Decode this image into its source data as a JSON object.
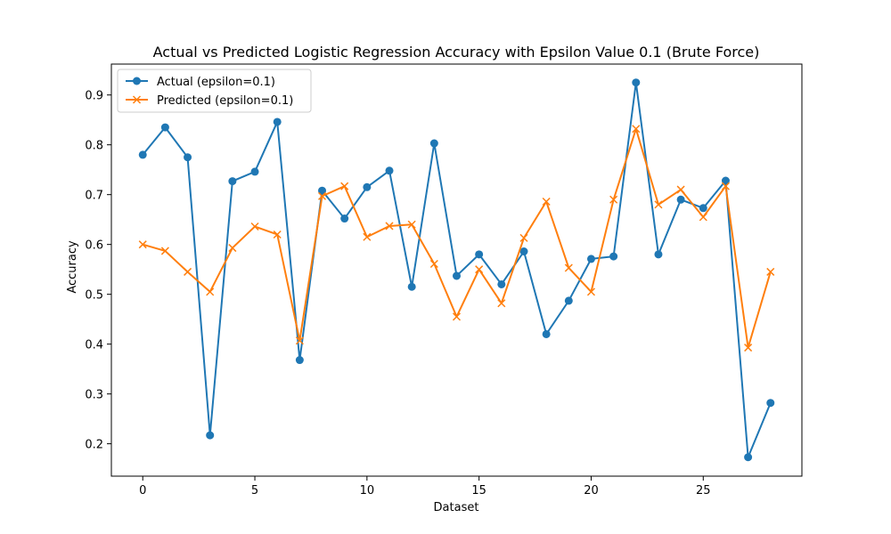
{
  "chart_data": {
    "type": "line",
    "title": "Actual vs Predicted Logistic Regression Accuracy with Epsilon Value 0.1 (Brute Force)",
    "xlabel": "Dataset",
    "ylabel": "Accuracy",
    "xlim": [
      -1.4,
      29.4
    ],
    "ylim": [
      0.135,
      0.962
    ],
    "xticks": [
      0,
      5,
      10,
      15,
      20,
      25
    ],
    "yticks": [
      0.2,
      0.3,
      0.4,
      0.5,
      0.6,
      0.7,
      0.8,
      0.9
    ],
    "grid": false,
    "legend_position": "upper left",
    "x": [
      0,
      1,
      2,
      3,
      4,
      5,
      6,
      7,
      8,
      9,
      10,
      11,
      12,
      13,
      14,
      15,
      16,
      17,
      18,
      19,
      20,
      21,
      22,
      23,
      24,
      25,
      26,
      27,
      28
    ],
    "series": [
      {
        "name": "Actual (epsilon=0.1)",
        "color": "#1f77b4",
        "marker": "circle",
        "values": [
          0.78,
          0.835,
          0.775,
          0.217,
          0.727,
          0.746,
          0.846,
          0.368,
          0.708,
          0.652,
          0.715,
          0.748,
          0.515,
          0.803,
          0.537,
          0.58,
          0.52,
          0.586,
          0.42,
          0.487,
          0.571,
          0.576,
          0.925,
          0.58,
          0.69,
          0.673,
          0.728,
          0.173,
          0.282
        ]
      },
      {
        "name": "Predicted (epsilon=0.1)",
        "color": "#ff7f0e",
        "marker": "x",
        "values": [
          0.6,
          0.587,
          0.545,
          0.505,
          0.593,
          0.636,
          0.62,
          0.407,
          0.697,
          0.717,
          0.615,
          0.637,
          0.64,
          0.561,
          0.455,
          0.55,
          0.482,
          0.613,
          0.686,
          0.553,
          0.505,
          0.69,
          0.832,
          0.68,
          0.71,
          0.655,
          0.717,
          0.393,
          0.545
        ]
      }
    ]
  }
}
